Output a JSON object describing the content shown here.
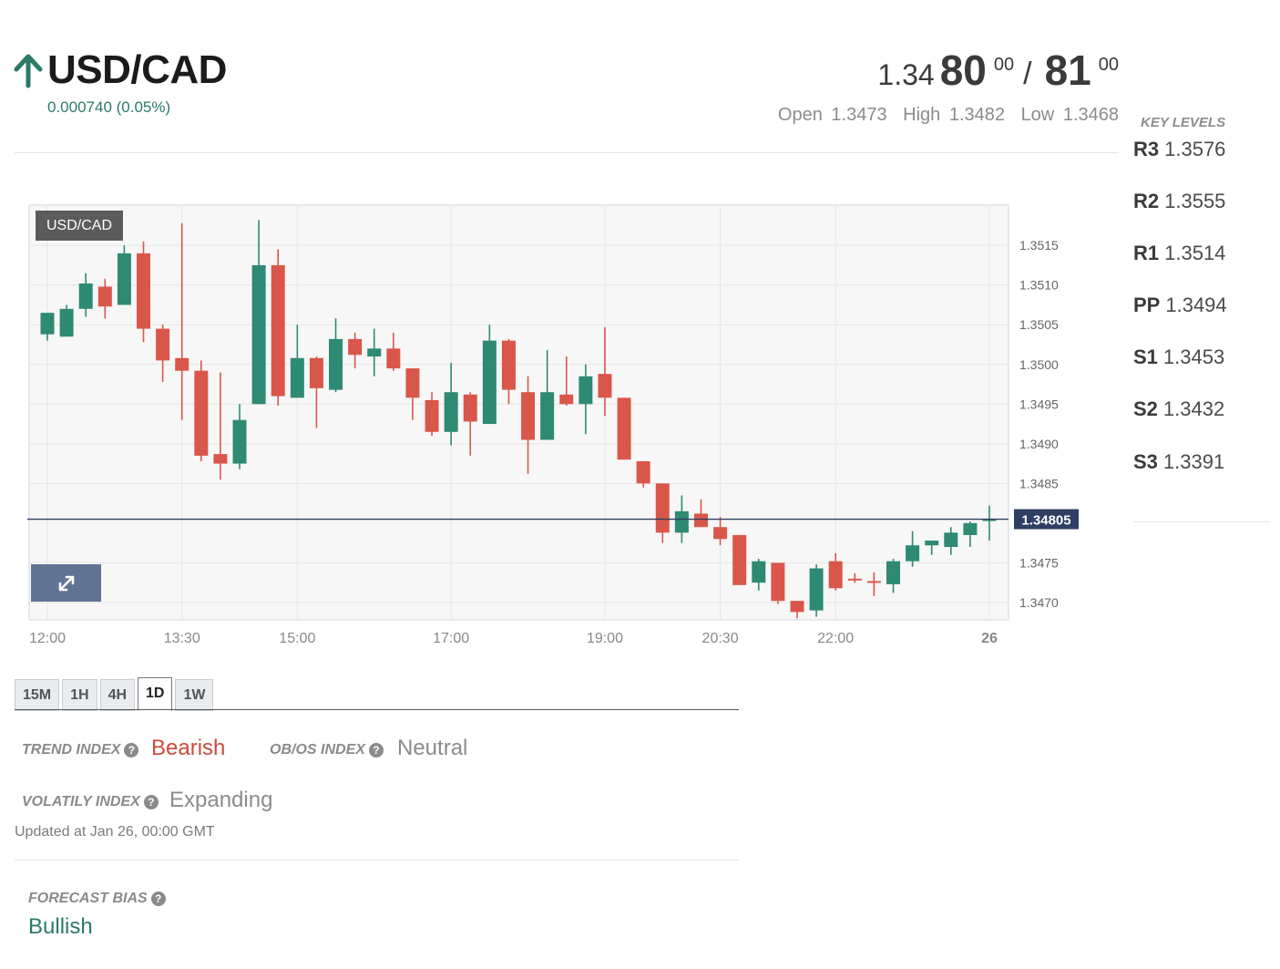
{
  "header": {
    "pair": "USD/CAD",
    "direction_icon": "arrow-up-icon",
    "change": "0.000740 (0.05%)",
    "price": {
      "prefix": "1.34",
      "bid_big": "80",
      "bid_sup": "00",
      "separator": "/",
      "ask_big": "81",
      "ask_sup": "00"
    },
    "open_label": "Open",
    "open": "1.3473",
    "high_label": "High",
    "high": "1.3482",
    "low_label": "Low",
    "low": "1.3468"
  },
  "key_levels": {
    "title": "KEY LEVELS",
    "items": [
      {
        "label": "R3",
        "value": "1.3576"
      },
      {
        "label": "R2",
        "value": "1.3555"
      },
      {
        "label": "R1",
        "value": "1.3514"
      },
      {
        "label": "PP",
        "value": "1.3494"
      },
      {
        "label": "S1",
        "value": "1.3453"
      },
      {
        "label": "S2",
        "value": "1.3432"
      },
      {
        "label": "S3",
        "value": "1.3391"
      }
    ]
  },
  "chart_data": {
    "type": "candlestick",
    "badge": "USD/CAD",
    "expand_icon": "expand-icon",
    "current_price": 1.34805,
    "current_price_label": "1.34805",
    "y_ticks": [
      "1.3515",
      "1.3510",
      "1.3505",
      "1.3500",
      "1.3495",
      "1.3490",
      "1.3485",
      "1.3475",
      "1.3470"
    ],
    "y_min": 1.34685,
    "y_max": 1.35195,
    "x_ticks": [
      "12:00",
      "13:30",
      "15:00",
      "17:00",
      "19:00",
      "20:30",
      "22:00",
      "26"
    ],
    "colors": {
      "up": "#2e8a72",
      "down": "#d9574a",
      "grid": "#e6e6e6",
      "price_line": "#2e3f63",
      "price_label_bg": "#2e3f63"
    },
    "candles": [
      {
        "t": "11:45",
        "o": 1.35038,
        "h": 1.35065,
        "l": 1.3503,
        "c": 1.35065
      },
      {
        "t": "12:00",
        "o": 1.35035,
        "h": 1.35075,
        "l": 1.35035,
        "c": 1.3507
      },
      {
        "t": "12:15",
        "o": 1.3507,
        "h": 1.35115,
        "l": 1.3506,
        "c": 1.35102
      },
      {
        "t": "12:30",
        "o": 1.35098,
        "h": 1.35108,
        "l": 1.35058,
        "c": 1.35073
      },
      {
        "t": "12:45",
        "o": 1.35075,
        "h": 1.3515,
        "l": 1.35075,
        "c": 1.3514
      },
      {
        "t": "13:00",
        "o": 1.3514,
        "h": 1.35155,
        "l": 1.35028,
        "c": 1.35045
      },
      {
        "t": "13:15",
        "o": 1.35045,
        "h": 1.3505,
        "l": 1.34978,
        "c": 1.35005
      },
      {
        "t": "13:30",
        "o": 1.35008,
        "h": 1.35178,
        "l": 1.3493,
        "c": 1.34992
      },
      {
        "t": "13:45",
        "o": 1.34992,
        "h": 1.35005,
        "l": 1.34878,
        "c": 1.34885
      },
      {
        "t": "14:00",
        "o": 1.34887,
        "h": 1.3499,
        "l": 1.34855,
        "c": 1.34875
      },
      {
        "t": "14:15",
        "o": 1.34875,
        "h": 1.3495,
        "l": 1.34868,
        "c": 1.3493
      },
      {
        "t": "14:30",
        "o": 1.3495,
        "h": 1.35182,
        "l": 1.3495,
        "c": 1.35125
      },
      {
        "t": "14:45",
        "o": 1.35125,
        "h": 1.35145,
        "l": 1.34948,
        "c": 1.3496
      },
      {
        "t": "15:00",
        "o": 1.34958,
        "h": 1.3505,
        "l": 1.34958,
        "c": 1.35008
      },
      {
        "t": "15:15",
        "o": 1.35008,
        "h": 1.3501,
        "l": 1.3492,
        "c": 1.3497
      },
      {
        "t": "15:30",
        "o": 1.34968,
        "h": 1.35058,
        "l": 1.34965,
        "c": 1.35032
      },
      {
        "t": "15:45",
        "o": 1.35032,
        "h": 1.3504,
        "l": 1.34995,
        "c": 1.35012
      },
      {
        "t": "16:00",
        "o": 1.3501,
        "h": 1.35045,
        "l": 1.34985,
        "c": 1.3502
      },
      {
        "t": "16:15",
        "o": 1.3502,
        "h": 1.3504,
        "l": 1.34992,
        "c": 1.34995
      },
      {
        "t": "16:30",
        "o": 1.34995,
        "h": 1.34995,
        "l": 1.3493,
        "c": 1.34958
      },
      {
        "t": "16:45",
        "o": 1.34955,
        "h": 1.34965,
        "l": 1.3491,
        "c": 1.34915
      },
      {
        "t": "17:00",
        "o": 1.34915,
        "h": 1.35002,
        "l": 1.34898,
        "c": 1.34965
      },
      {
        "t": "17:15",
        "o": 1.34962,
        "h": 1.34965,
        "l": 1.34885,
        "c": 1.34928
      },
      {
        "t": "17:30",
        "o": 1.34925,
        "h": 1.3505,
        "l": 1.34925,
        "c": 1.3503
      },
      {
        "t": "17:45",
        "o": 1.3503,
        "h": 1.35032,
        "l": 1.3495,
        "c": 1.34968
      },
      {
        "t": "18:00",
        "o": 1.34965,
        "h": 1.34985,
        "l": 1.34862,
        "c": 1.34905
      },
      {
        "t": "18:15",
        "o": 1.34905,
        "h": 1.35018,
        "l": 1.34905,
        "c": 1.34965
      },
      {
        "t": "18:30",
        "o": 1.34962,
        "h": 1.3501,
        "l": 1.34948,
        "c": 1.3495
      },
      {
        "t": "18:45",
        "o": 1.3495,
        "h": 1.35,
        "l": 1.34912,
        "c": 1.34985
      },
      {
        "t": "19:00",
        "o": 1.34988,
        "h": 1.35047,
        "l": 1.34935,
        "c": 1.34958
      },
      {
        "t": "19:15",
        "o": 1.34958,
        "h": 1.34958,
        "l": 1.3488,
        "c": 1.3488
      },
      {
        "t": "19:30",
        "o": 1.34878,
        "h": 1.34878,
        "l": 1.34845,
        "c": 1.3485
      },
      {
        "t": "19:45",
        "o": 1.3485,
        "h": 1.3485,
        "l": 1.34775,
        "c": 1.34788
      },
      {
        "t": "20:00",
        "o": 1.34788,
        "h": 1.34835,
        "l": 1.34775,
        "c": 1.34815
      },
      {
        "t": "20:15",
        "o": 1.34812,
        "h": 1.3483,
        "l": 1.34795,
        "c": 1.34795
      },
      {
        "t": "20:30",
        "o": 1.34795,
        "h": 1.34808,
        "l": 1.34772,
        "c": 1.3478
      },
      {
        "t": "20:45",
        "o": 1.34785,
        "h": 1.34785,
        "l": 1.34722,
        "c": 1.34722
      },
      {
        "t": "21:00",
        "o": 1.34725,
        "h": 1.34755,
        "l": 1.34715,
        "c": 1.34752
      },
      {
        "t": "21:15",
        "o": 1.3475,
        "h": 1.3475,
        "l": 1.34698,
        "c": 1.34702
      },
      {
        "t": "21:30",
        "o": 1.34702,
        "h": 1.34702,
        "l": 1.3468,
        "c": 1.34688
      },
      {
        "t": "21:45",
        "o": 1.3469,
        "h": 1.34748,
        "l": 1.34682,
        "c": 1.34743
      },
      {
        "t": "22:00",
        "o": 1.34752,
        "h": 1.34762,
        "l": 1.34715,
        "c": 1.34718
      },
      {
        "t": "22:15",
        "o": 1.3473,
        "h": 1.34737,
        "l": 1.34725,
        "c": 1.34728
      },
      {
        "t": "22:30",
        "o": 1.34727,
        "h": 1.34738,
        "l": 1.34708,
        "c": 1.34725
      },
      {
        "t": "22:45",
        "o": 1.34723,
        "h": 1.34755,
        "l": 1.34712,
        "c": 1.34752
      },
      {
        "t": "23:00",
        "o": 1.34752,
        "h": 1.3479,
        "l": 1.34745,
        "c": 1.34772
      },
      {
        "t": "23:15",
        "o": 1.34772,
        "h": 1.34778,
        "l": 1.3476,
        "c": 1.34778
      },
      {
        "t": "23:30",
        "o": 1.3477,
        "h": 1.34795,
        "l": 1.3476,
        "c": 1.34788
      },
      {
        "t": "23:45",
        "o": 1.34785,
        "h": 1.34802,
        "l": 1.3477,
        "c": 1.348
      },
      {
        "t": "00:00",
        "o": 1.34805,
        "h": 1.34822,
        "l": 1.34778,
        "c": 1.34805
      }
    ]
  },
  "tabs": [
    "15M",
    "1H",
    "4H",
    "1D",
    "1W"
  ],
  "active_tab": "1D",
  "indices": {
    "trend_label": "TREND INDEX",
    "trend_value": "Bearish",
    "obos_label": "OB/OS INDEX",
    "obos_value": "Neutral",
    "volatility_label": "VOLATILY INDEX",
    "volatility_value": "Expanding",
    "help_icon": "question-circle-icon",
    "updated": "Updated at Jan 26, 00:00 GMT"
  },
  "forecast": {
    "label": "FORECAST BIAS",
    "value": "Bullish"
  },
  "colors": {
    "bullish": "#2b7a68",
    "bearish": "#cc4a3c",
    "neutral": "#8b8b8b"
  }
}
